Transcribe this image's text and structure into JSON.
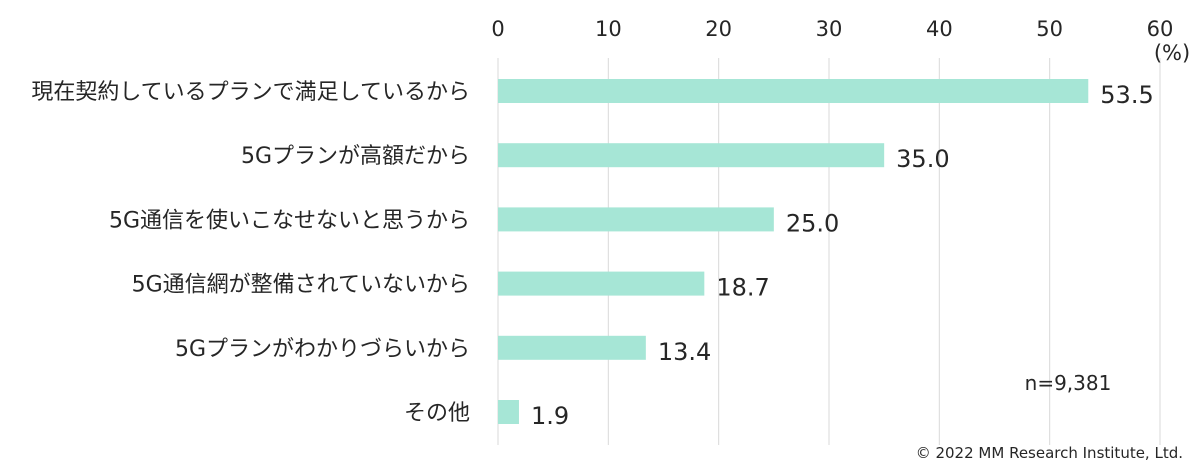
{
  "chart_data": {
    "type": "bar",
    "orientation": "horizontal",
    "categories": [
      "現在契約しているプランで満足しているから",
      "5Gプランが高額だから",
      "5G通信を使いこなせないと思うから",
      "5G通信網が整備されていないから",
      "5Gプランがわかりづらいから",
      "その他"
    ],
    "values": [
      53.5,
      35.0,
      25.0,
      18.7,
      13.4,
      1.9
    ],
    "value_labels": [
      "53.5",
      "35.0",
      "25.0",
      "18.7",
      "13.4",
      "1.9"
    ],
    "xlim": [
      0,
      60
    ],
    "xticks": [
      0,
      10,
      20,
      30,
      40,
      50,
      60
    ],
    "xaxis_position": "top",
    "unit_label": "(%)",
    "grid": true,
    "bar_color": "#a6e6d6",
    "grid_color": "#d9d9d9",
    "sample_note": "n=9,381"
  },
  "copyright": "© 2022 MM Research Institute, Ltd."
}
